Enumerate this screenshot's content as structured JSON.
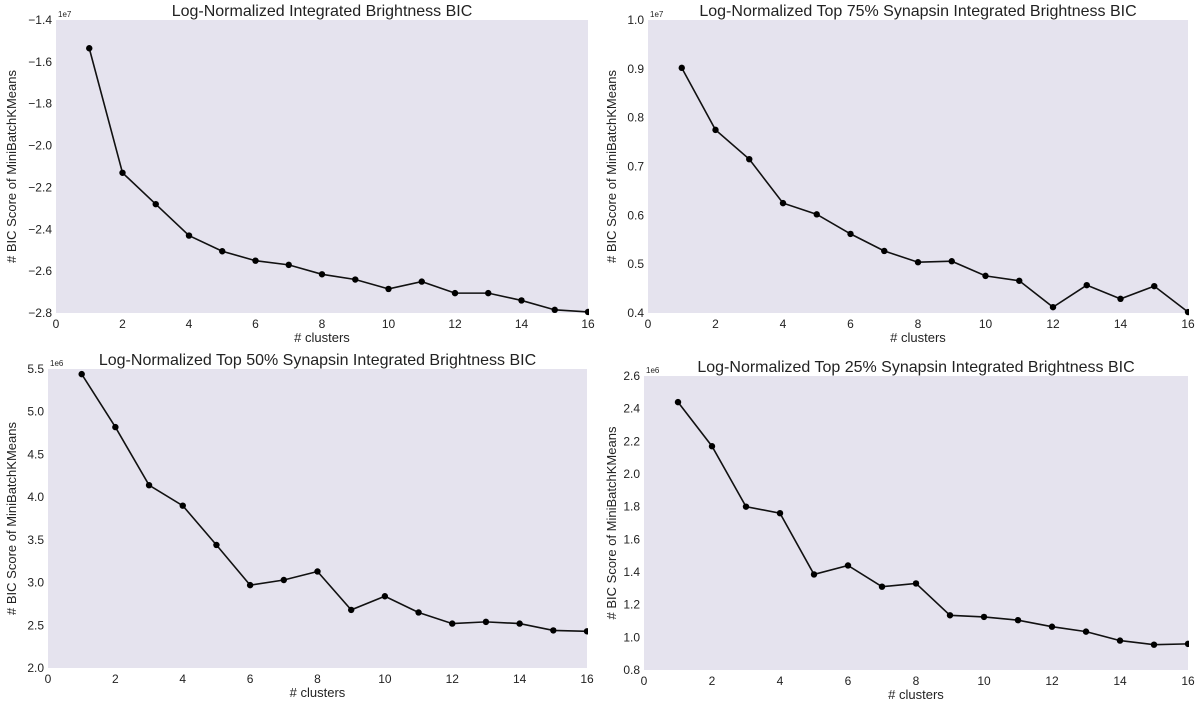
{
  "chart_data": [
    {
      "type": "line",
      "title": "Log-Normalized Integrated Brightness BIC",
      "xlabel": "# clusters",
      "ylabel": "# BIC Score of MiniBatchKMeans",
      "offset_label": "1e7",
      "xlim": [
        0,
        16
      ],
      "ylim": [
        -2.8,
        -1.4
      ],
      "xticks": [
        "0",
        "2",
        "4",
        "6",
        "8",
        "10",
        "12",
        "14",
        "16"
      ],
      "yticks": [
        "-1.4",
        "-1.6",
        "-1.8",
        "-2.0",
        "-2.2",
        "-2.4",
        "-2.6",
        "-2.8"
      ],
      "x": [
        1,
        2,
        3,
        4,
        5,
        6,
        7,
        8,
        9,
        10,
        11,
        12,
        13,
        14,
        15,
        16
      ],
      "series": [
        {
          "values": [
            -1.535,
            -2.13,
            -2.28,
            -2.43,
            -2.505,
            -2.55,
            -2.57,
            -2.615,
            -2.64,
            -2.685,
            -2.65,
            -2.705,
            -2.705,
            -2.74,
            -2.785,
            -2.795
          ]
        }
      ],
      "background": "#e5e3ee",
      "line_color": "#111111",
      "grid": false
    },
    {
      "type": "line",
      "title": "Log-Normalized Top 75% Synapsin Integrated Brightness BIC",
      "xlabel": "# clusters",
      "ylabel": "# BIC Score of MiniBatchKMeans",
      "offset_label": "1e7",
      "xlim": [
        0,
        16
      ],
      "ylim": [
        0.4,
        1.0
      ],
      "xticks": [
        "0",
        "2",
        "4",
        "6",
        "8",
        "10",
        "12",
        "14",
        "16"
      ],
      "yticks": [
        "0.4",
        "0.5",
        "0.6",
        "0.7",
        "0.8",
        "0.9",
        "1.0"
      ],
      "x": [
        1,
        2,
        3,
        4,
        5,
        6,
        7,
        8,
        9,
        10,
        11,
        12,
        13,
        14,
        15,
        16
      ],
      "series": [
        {
          "values": [
            0.902,
            0.775,
            0.715,
            0.625,
            0.602,
            0.562,
            0.527,
            0.504,
            0.506,
            0.476,
            0.466,
            0.412,
            0.457,
            0.429,
            0.455,
            0.402
          ]
        }
      ],
      "background": "#e5e3ee",
      "line_color": "#111111",
      "grid": false
    },
    {
      "type": "line",
      "title": "Log-Normalized Top 50% Synapsin Integrated Brightness BIC",
      "xlabel": "# clusters",
      "ylabel": "# BIC Score of MiniBatchKMeans",
      "offset_label": "1e6",
      "xlim": [
        0,
        16
      ],
      "ylim": [
        2.0,
        5.5
      ],
      "xticks": [
        "0",
        "2",
        "4",
        "6",
        "8",
        "10",
        "12",
        "14",
        "16"
      ],
      "yticks": [
        "2.0",
        "2.5",
        "3.0",
        "3.5",
        "4.0",
        "4.5",
        "5.0",
        "5.5"
      ],
      "x": [
        1,
        2,
        3,
        4,
        5,
        6,
        7,
        8,
        9,
        10,
        11,
        12,
        13,
        14,
        15,
        16
      ],
      "series": [
        {
          "values": [
            5.44,
            4.82,
            4.14,
            3.9,
            3.44,
            2.97,
            3.03,
            3.13,
            2.68,
            2.84,
            2.65,
            2.52,
            2.54,
            2.52,
            2.44,
            2.43
          ]
        }
      ],
      "background": "#e5e3ee",
      "line_color": "#111111",
      "grid": false
    },
    {
      "type": "line",
      "title": "Log-Normalized Top 25% Synapsin Integrated Brightness BIC",
      "xlabel": "# clusters",
      "ylabel": "# BIC Score of MiniBatchKMeans",
      "offset_label": "1e6",
      "xlim": [
        0,
        16
      ],
      "ylim": [
        0.8,
        2.6
      ],
      "xticks": [
        "0",
        "2",
        "4",
        "6",
        "8",
        "10",
        "12",
        "14",
        "16"
      ],
      "yticks": [
        "0.8",
        "1.0",
        "1.2",
        "1.4",
        "1.6",
        "1.8",
        "2.0",
        "2.2",
        "2.4",
        "2.6"
      ],
      "x": [
        1,
        2,
        3,
        4,
        5,
        6,
        7,
        8,
        9,
        10,
        11,
        12,
        13,
        14,
        15,
        16
      ],
      "series": [
        {
          "values": [
            2.44,
            2.17,
            1.8,
            1.76,
            1.385,
            1.44,
            1.31,
            1.33,
            1.135,
            1.125,
            1.105,
            1.065,
            1.035,
            0.98,
            0.955,
            0.96
          ]
        }
      ],
      "background": "#e5e3ee",
      "line_color": "#111111",
      "grid": false
    }
  ]
}
